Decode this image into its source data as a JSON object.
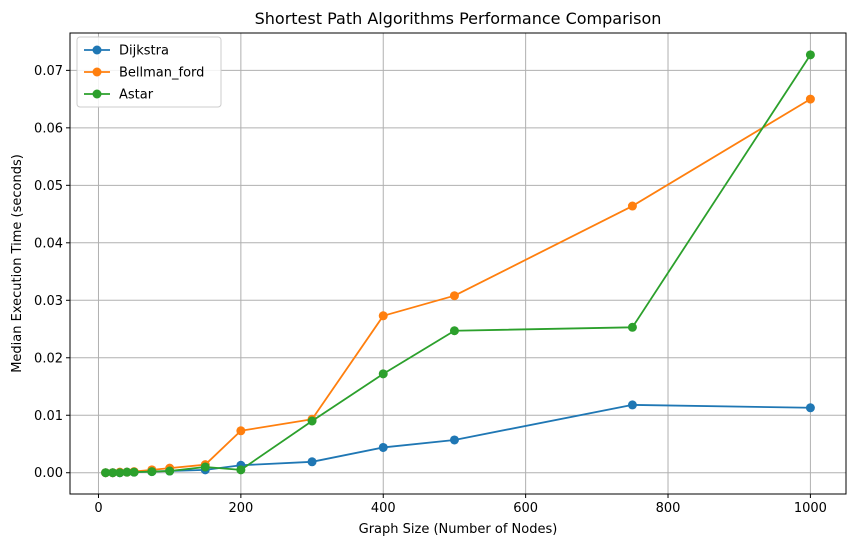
{
  "chart_data": {
    "type": "line",
    "title": "Shortest Path Algorithms Performance Comparison",
    "xlabel": "Graph Size (Number of Nodes)",
    "ylabel": "Median Execution Time (seconds)",
    "xlim": [
      -40,
      1050
    ],
    "ylim": [
      -0.0037,
      0.0765
    ],
    "x": [
      10,
      20,
      30,
      40,
      50,
      75,
      100,
      150,
      200,
      300,
      400,
      500,
      750,
      1000
    ],
    "x_ticks": [
      0,
      200,
      400,
      600,
      800,
      1000
    ],
    "x_tick_labels": [
      "0",
      "200",
      "400",
      "600",
      "800",
      "1000"
    ],
    "y_ticks": [
      0.0,
      0.01,
      0.02,
      0.03,
      0.04,
      0.05,
      0.06,
      0.07
    ],
    "y_tick_labels": [
      "0.00",
      "0.01",
      "0.02",
      "0.03",
      "0.04",
      "0.05",
      "0.06",
      "0.07"
    ],
    "grid": true,
    "legend_position": "top-left",
    "series": [
      {
        "name": "Dijkstra",
        "color": "#1f77b4",
        "values": [
          0.0,
          0.0,
          0.0,
          0.0001,
          0.0001,
          0.0002,
          0.0003,
          0.0005,
          0.0013,
          0.0019,
          0.0044,
          0.0057,
          0.0118,
          0.0113
        ]
      },
      {
        "name": "Bellman_ford",
        "color": "#ff7f0e",
        "values": [
          0.0,
          0.0,
          0.0001,
          0.0001,
          0.0002,
          0.0005,
          0.0008,
          0.0014,
          0.0073,
          0.0093,
          0.0273,
          0.0308,
          0.0464,
          0.065
        ]
      },
      {
        "name": "Astar",
        "color": "#2ca02c",
        "values": [
          0.0,
          0.0,
          0.0,
          0.0001,
          0.0001,
          0.0002,
          0.0003,
          0.001,
          0.0005,
          0.009,
          0.0172,
          0.0247,
          0.0253,
          0.0727
        ]
      }
    ]
  }
}
